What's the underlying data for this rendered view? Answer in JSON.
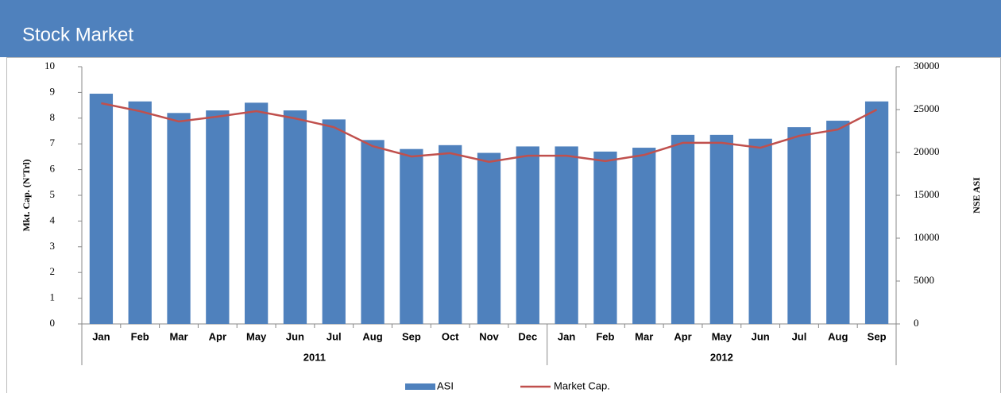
{
  "chart_data": {
    "type": "bar_line",
    "title": "Stock Market",
    "y_label": "Mkt. Cap. (N'Trl)",
    "y2_label": "NSE ASI",
    "groups": [
      {
        "label": "2011",
        "categories": [
          "Jan",
          "Feb",
          "Mar",
          "Apr",
          "May",
          "Jun",
          "Jul",
          "Aug",
          "Sep",
          "Oct",
          "Nov",
          "Dec"
        ]
      },
      {
        "label": "2012",
        "categories": [
          "Jan",
          "Feb",
          "Mar",
          "Apr",
          "May",
          "Jun",
          "Jul",
          "Aug",
          "Sep"
        ]
      }
    ],
    "series": [
      {
        "name": "ASI",
        "type": "bar",
        "axis": "y2",
        "color": "#4f81bd",
        "values": [
          26850,
          25950,
          24600,
          24900,
          25800,
          24900,
          23850,
          21450,
          20400,
          20850,
          19950,
          20700,
          20700,
          20100,
          20550,
          22050,
          22050,
          21600,
          22950,
          23700,
          25950
        ]
      },
      {
        "name": "Market Cap.",
        "type": "line",
        "axis": "y",
        "color": "#c0504d",
        "values": [
          8.58,
          8.27,
          7.87,
          8.06,
          8.27,
          7.99,
          7.65,
          6.91,
          6.51,
          6.64,
          6.3,
          6.54,
          6.54,
          6.33,
          6.57,
          7.04,
          7.04,
          6.85,
          7.31,
          7.56,
          8.33
        ]
      }
    ],
    "ylim": [
      0,
      10
    ],
    "yticks": [
      0,
      1,
      2,
      3,
      4,
      5,
      6,
      7,
      8,
      9,
      10
    ],
    "y2lim": [
      0,
      30000
    ],
    "y2ticks": [
      0,
      5000,
      10000,
      15000,
      20000,
      25000,
      30000
    ],
    "legend": "bottom"
  }
}
